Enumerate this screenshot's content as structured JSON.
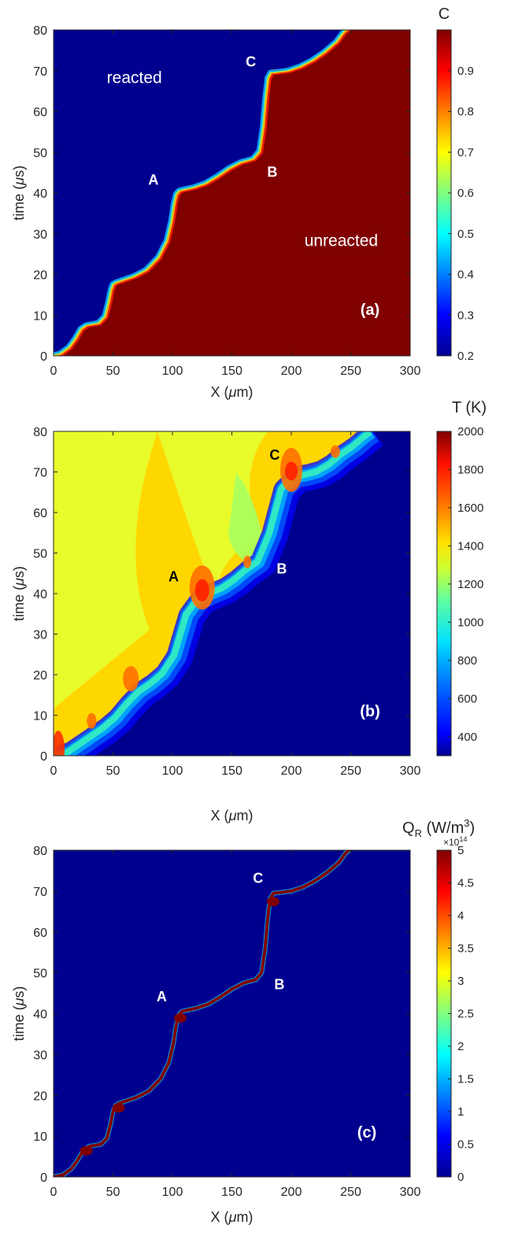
{
  "chart_data": [
    {
      "type": "heatmap",
      "panel_label": "(a)",
      "xlabel": "X (μm)",
      "ylabel": "time (μs)",
      "xlim": [
        0,
        300
      ],
      "ylim": [
        0,
        80
      ],
      "xticks": [
        0,
        50,
        100,
        150,
        200,
        250,
        300
      ],
      "yticks": [
        0,
        10,
        20,
        30,
        40,
        50,
        60,
        70,
        80
      ],
      "colorbar": {
        "title": "C",
        "range": [
          0.2,
          1.0
        ],
        "ticks": [
          "0.2",
          "0.3",
          "0.4",
          "0.5",
          "0.6",
          "0.7",
          "0.8",
          "0.9"
        ],
        "tick_values": [
          0.2,
          0.3,
          0.4,
          0.5,
          0.6,
          0.7,
          0.8,
          0.9
        ]
      },
      "front_curve": {
        "x": [
          0,
          8,
          15,
          20,
          25,
          30,
          40,
          45,
          48,
          50,
          52,
          55,
          60,
          70,
          80,
          90,
          97,
          101,
          103,
          105,
          108,
          112,
          120,
          130,
          140,
          150,
          160,
          170,
          175,
          178,
          180,
          182,
          185,
          190,
          200,
          210,
          220,
          230,
          240,
          245,
          248,
          250
        ],
        "y": [
          0,
          0.5,
          2,
          4,
          6.5,
          7.5,
          8,
          9.5,
          13,
          16,
          17.5,
          18,
          18.5,
          19.5,
          21,
          24,
          28,
          33,
          37,
          39.5,
          40.5,
          40.8,
          41.3,
          42.3,
          44,
          46,
          47.5,
          48.3,
          50,
          56,
          63,
          68,
          69.5,
          69.6,
          70,
          71,
          72.5,
          74.5,
          77,
          79,
          80,
          80
        ]
      },
      "annotations": [
        {
          "text": "reacted",
          "x": 68,
          "y": 67
        },
        {
          "text": "unreacted",
          "x": 242,
          "y": 27
        },
        {
          "text": "A",
          "x": 84,
          "y": 42
        },
        {
          "text": "B",
          "x": 184,
          "y": 44
        },
        {
          "text": "C",
          "x": 166,
          "y": 71
        }
      ]
    },
    {
      "type": "heatmap",
      "panel_label": "(b)",
      "xlabel": "X (μm)",
      "ylabel": "time (μs)",
      "xlim": [
        0,
        300
      ],
      "ylim": [
        0,
        80
      ],
      "xticks": [
        0,
        50,
        100,
        150,
        200,
        250,
        300
      ],
      "yticks": [
        0,
        10,
        20,
        30,
        40,
        50,
        60,
        70,
        80
      ],
      "colorbar": {
        "title": "T (K)",
        "range": [
          300,
          2000
        ],
        "ticks": [
          "400",
          "600",
          "800",
          "1000",
          "1200",
          "1400",
          "1600",
          "1800",
          "2000"
        ],
        "tick_values": [
          400,
          600,
          800,
          1000,
          1200,
          1400,
          1600,
          1800,
          2000
        ]
      },
      "front_curve": {
        "x": [
          0,
          10,
          20,
          30,
          40,
          50,
          60,
          70,
          80,
          90,
          100,
          110,
          120,
          130,
          140,
          150,
          160,
          170,
          180,
          190,
          200,
          210,
          220,
          230,
          240,
          250,
          260,
          265
        ],
        "y": [
          0,
          1,
          3,
          5,
          7,
          9.5,
          13,
          16,
          18,
          20.5,
          25,
          35,
          39,
          40.3,
          41.5,
          43.5,
          46,
          48,
          55,
          66,
          69,
          69.5,
          70.3,
          72,
          74.5,
          76.5,
          79,
          80
        ]
      },
      "annotations": [
        {
          "text": "A",
          "x": 101,
          "y": 43
        },
        {
          "text": "B",
          "x": 192,
          "y": 45
        },
        {
          "text": "C",
          "x": 186,
          "y": 73
        }
      ]
    },
    {
      "type": "heatmap",
      "panel_label": "(c)",
      "xlabel": "X (μm)",
      "ylabel": "time (μs)",
      "xlim": [
        0,
        300
      ],
      "ylim": [
        0,
        80
      ],
      "xticks": [
        0,
        50,
        100,
        150,
        200,
        250,
        300
      ],
      "yticks": [
        0,
        10,
        20,
        30,
        40,
        50,
        60,
        70,
        80
      ],
      "colorbar": {
        "title": "Q",
        "title_sub": "R",
        "title_rest": " (W/m",
        "title_sup": "3",
        "title_end": ")",
        "exponent_prefix": "×10",
        "exponent_power": "14",
        "range": [
          0,
          5
        ],
        "ticks": [
          "0",
          "0.5",
          "1",
          "1.5",
          "2",
          "2.5",
          "3",
          "3.5",
          "4",
          "4.5",
          "5"
        ],
        "tick_values": [
          0,
          0.5,
          1,
          1.5,
          2,
          2.5,
          3,
          3.5,
          4,
          4.5,
          5
        ]
      },
      "front_curve": {
        "x": [
          0,
          8,
          15,
          20,
          25,
          30,
          40,
          45,
          48,
          50,
          52,
          55,
          60,
          70,
          80,
          90,
          97,
          101,
          103,
          105,
          108,
          112,
          120,
          130,
          140,
          150,
          160,
          170,
          175,
          178,
          180,
          182,
          185,
          190,
          200,
          210,
          220,
          230,
          240,
          245,
          248,
          250
        ],
        "y": [
          0,
          0.5,
          2,
          4,
          6.5,
          7.5,
          8,
          9.5,
          13,
          16,
          17.5,
          18,
          18.5,
          19.5,
          21,
          24,
          28,
          33,
          37,
          39.5,
          40.5,
          40.8,
          41.3,
          42.3,
          44,
          46,
          47.5,
          48.3,
          50,
          56,
          63,
          68,
          69.5,
          69.6,
          70,
          71,
          72.5,
          74.5,
          77,
          79,
          80,
          80
        ]
      },
      "annotations": [
        {
          "text": "A",
          "x": 91,
          "y": 43
        },
        {
          "text": "B",
          "x": 190,
          "y": 46
        },
        {
          "text": "C",
          "x": 172,
          "y": 72
        }
      ]
    }
  ]
}
